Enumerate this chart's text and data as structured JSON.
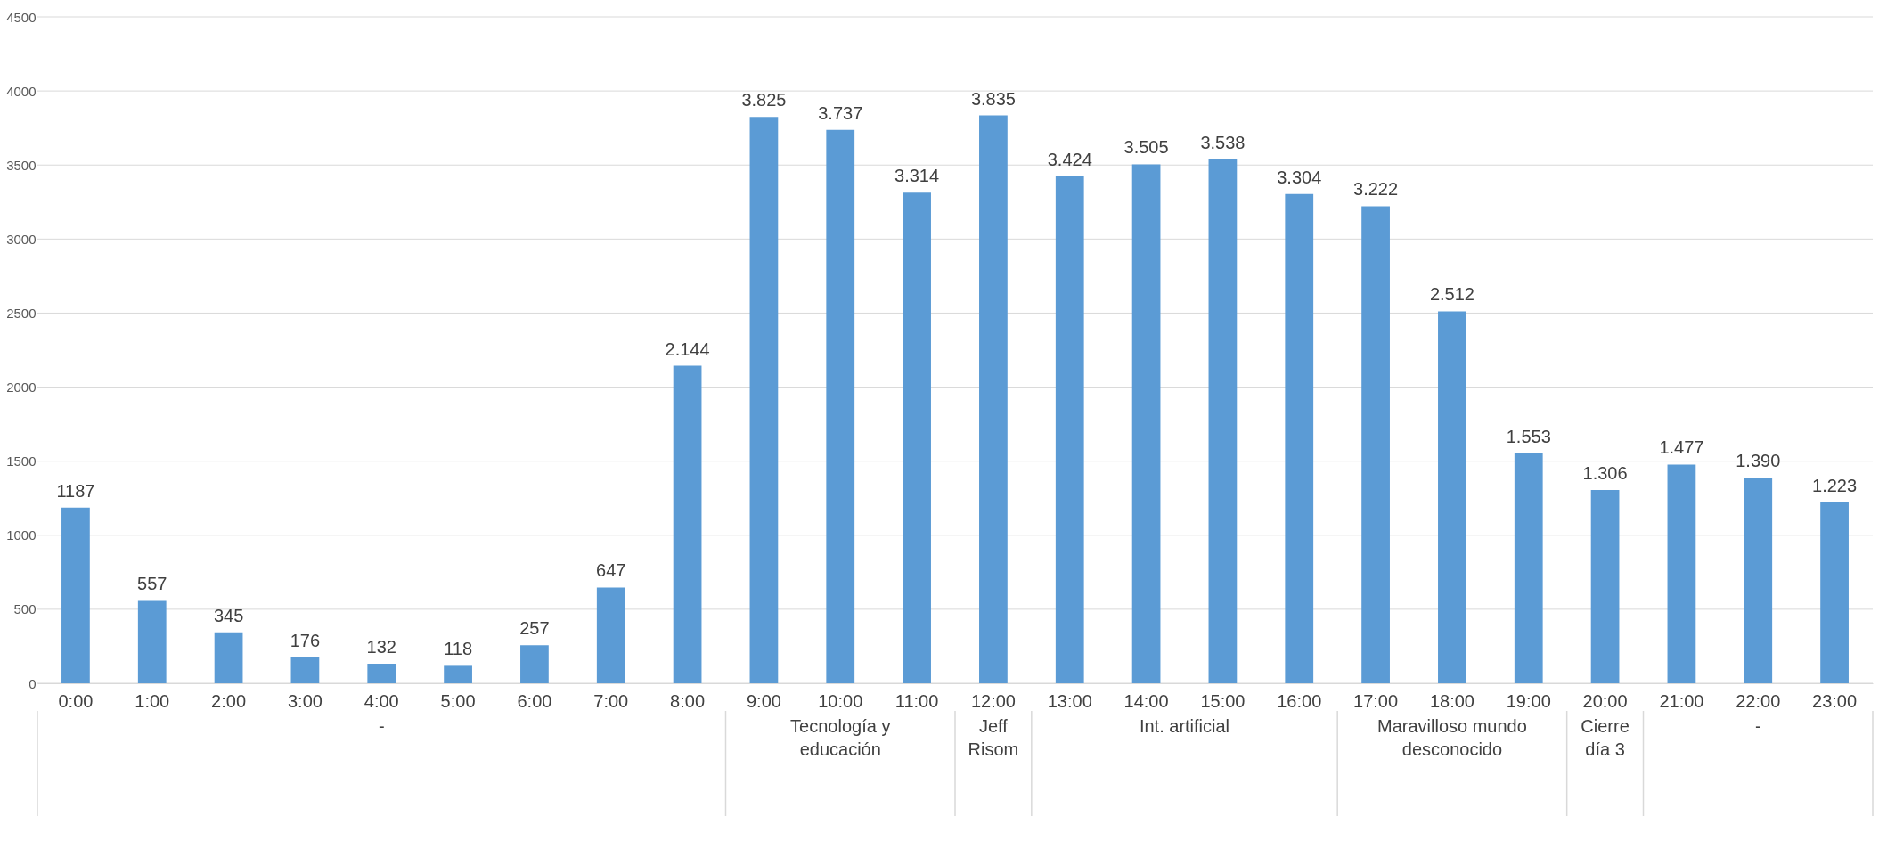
{
  "chart_data": {
    "type": "bar",
    "categories": [
      "0:00",
      "1:00",
      "2:00",
      "3:00",
      "4:00",
      "5:00",
      "6:00",
      "7:00",
      "8:00",
      "9:00",
      "10:00",
      "11:00",
      "12:00",
      "13:00",
      "14:00",
      "15:00",
      "16:00",
      "17:00",
      "18:00",
      "19:00",
      "20:00",
      "21:00",
      "22:00",
      "23:00"
    ],
    "values": [
      1187,
      557,
      345,
      176,
      132,
      118,
      257,
      647,
      2144,
      3825,
      3737,
      3314,
      3835,
      3424,
      3505,
      3538,
      3304,
      3222,
      2512,
      1553,
      1306,
      1477,
      1390,
      1223
    ],
    "value_labels": [
      "1187",
      "557",
      "345",
      "176",
      "132",
      "118",
      "257",
      "647",
      "2.144",
      "3.825",
      "3.737",
      "3.314",
      "3.835",
      "3.424",
      "3.505",
      "3.538",
      "3.304",
      "3.222",
      "2.512",
      "1.553",
      "1.306",
      "1.477",
      "1.390",
      "1.223"
    ],
    "color": "#5b9bd5",
    "ylim": [
      0,
      4500
    ],
    "yticks": [
      0,
      500,
      1000,
      1500,
      2000,
      2500,
      3000,
      3500,
      4000,
      4500
    ],
    "grid": "y",
    "bands": [
      {
        "axis": "x",
        "from": "0:00",
        "to": "8:00",
        "label": "-",
        "color": "#ffffff"
      },
      {
        "axis": "x",
        "from": "9:00",
        "to": "11:00",
        "label": "Tecnología y educación",
        "color": "#ffffff"
      },
      {
        "axis": "x",
        "from": "12:00",
        "to": "12:00",
        "label": "Jeff Risom",
        "color": "#ffffff"
      },
      {
        "axis": "x",
        "from": "13:00",
        "to": "16:00",
        "label": "Int. artificial",
        "color": "#ffffff"
      },
      {
        "axis": "x",
        "from": "17:00",
        "to": "19:00",
        "label": "Maravilloso mundo desconocido",
        "color": "#ffffff"
      },
      {
        "axis": "x",
        "from": "20:00",
        "to": "20:00",
        "label": "Cierre día 3",
        "color": "#ffffff"
      },
      {
        "axis": "x",
        "from": "21:00",
        "to": "23:00",
        "label": "-",
        "color": "#ffffff"
      }
    ]
  }
}
